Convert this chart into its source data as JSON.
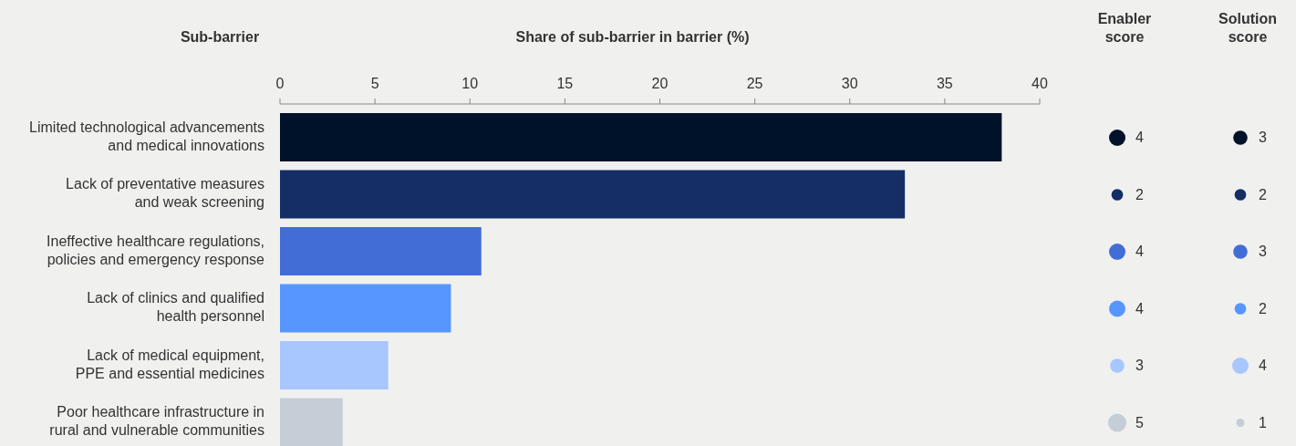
{
  "chart_data": [
    {
      "type": "bar",
      "orientation": "horizontal",
      "ylabel": "Sub-barrier",
      "xlabel": "Share of sub-barrier in barrier (%)",
      "categories": [
        "Limited technological advancements\nand medical innovations",
        "Lack of preventative measures\nand weak screening",
        "Ineffective healthcare regulations,\npolicies and emergency response",
        "Lack of clinics and qualified\nhealth personnel",
        "Lack of medical equipment,\nPPE and essential medicines",
        "Poor healthcare infrastructure in\nrural and vulnerable communities"
      ],
      "values": [
        38.0,
        32.9,
        10.6,
        9.0,
        5.7,
        3.3
      ],
      "colors": [
        "#00112a",
        "#152e66",
        "#426dd6",
        "#5896ff",
        "#a8c6ff",
        "#c5ced7"
      ],
      "xlim": [
        0,
        40
      ],
      "xticks": [
        0,
        5,
        10,
        15,
        20,
        25,
        30,
        35,
        40
      ],
      "grid": false
    },
    {
      "type": "other",
      "title": "Enabler\nscore",
      "values": [
        4,
        2,
        4,
        4,
        3,
        5
      ],
      "data_labels": true,
      "colors": [
        "#00112a",
        "#152e66",
        "#426dd6",
        "#5896ff",
        "#a8c6ff",
        "#c5ced7"
      ]
    },
    {
      "type": "other",
      "title": "Solution\nscore",
      "values": [
        3,
        2,
        3,
        2,
        4,
        1
      ],
      "data_labels": true,
      "colors": [
        "#00112a",
        "#152e66",
        "#426dd6",
        "#5896ff",
        "#a8c6ff",
        "#c5ced7"
      ]
    }
  ]
}
